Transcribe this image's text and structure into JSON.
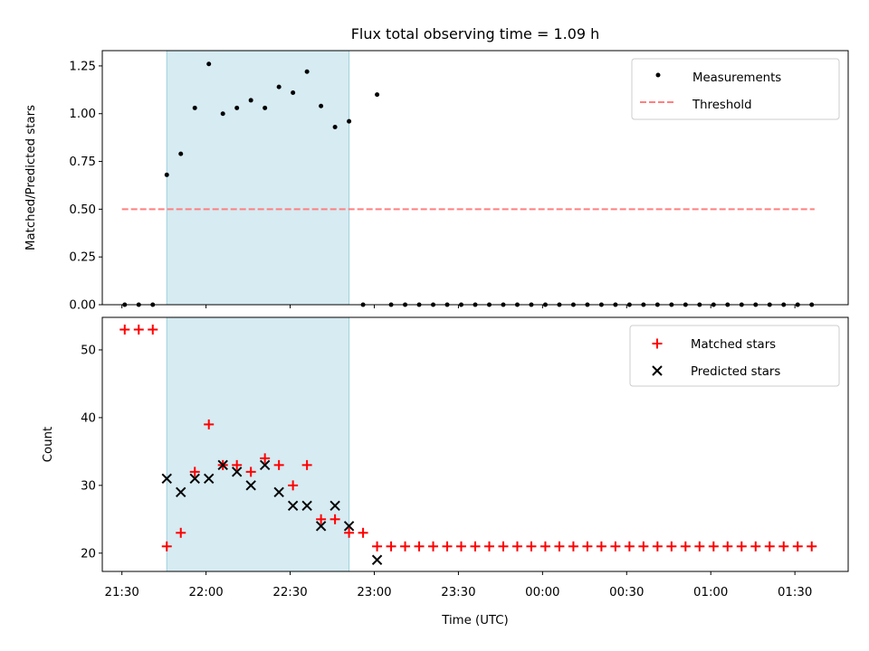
{
  "chart_data": [
    {
      "type": "scatter",
      "title": "Flux total observing time = 1.09 h",
      "ylabel": "Matched/Predicted stars",
      "ylim": [
        0,
        1.33
      ],
      "yticks": [
        "0.00",
        "0.25",
        "0.50",
        "0.75",
        "1.00",
        "1.25"
      ],
      "ytick_values": [
        0,
        0.25,
        0.5,
        0.75,
        1.0,
        1.25
      ],
      "legend_position": "top-right",
      "threshold": {
        "name": "Threshold",
        "value": 0.5,
        "x_start": "21:30",
        "x_end": "01:37",
        "color": "#ff7f7f"
      },
      "shaded_interval": {
        "x_start": "21:46",
        "x_end": "22:51",
        "color": "#add8e6"
      },
      "series": [
        {
          "name": "Measurements",
          "color": "#000000",
          "marker": "dot",
          "x": [
            "21:31",
            "21:36",
            "21:41",
            "21:46",
            "21:51",
            "21:56",
            "22:01",
            "22:06",
            "22:11",
            "22:16",
            "22:21",
            "22:26",
            "22:31",
            "22:36",
            "22:41",
            "22:46",
            "22:51",
            "22:56",
            "23:01",
            "23:06",
            "23:11",
            "23:16",
            "23:21",
            "23:26",
            "23:31",
            "23:36",
            "23:41",
            "23:46",
            "23:51",
            "23:56",
            "00:01",
            "00:06",
            "00:11",
            "00:16",
            "00:21",
            "00:26",
            "00:31",
            "00:36",
            "00:41",
            "00:46",
            "00:51",
            "00:56",
            "01:01",
            "01:06",
            "01:11",
            "01:16",
            "01:21",
            "01:26",
            "01:31",
            "01:36"
          ],
          "y": [
            0,
            0,
            0,
            0.68,
            0.79,
            1.03,
            1.26,
            1.0,
            1.03,
            1.07,
            1.03,
            1.14,
            1.11,
            1.22,
            1.04,
            0.93,
            0.96,
            0,
            1.1,
            0,
            0,
            0,
            0,
            0,
            0,
            0,
            0,
            0,
            0,
            0,
            0,
            0,
            0,
            0,
            0,
            0,
            0,
            0,
            0,
            0,
            0,
            0,
            0,
            0,
            0,
            0,
            0,
            0,
            0,
            0
          ]
        }
      ]
    },
    {
      "type": "scatter",
      "xlabel": "Time (UTC)",
      "ylabel": "Count",
      "ylim": [
        17.3,
        54.8
      ],
      "yticks": [
        "20",
        "30",
        "40",
        "50"
      ],
      "ytick_values": [
        20,
        30,
        40,
        50
      ],
      "xlim": [
        "21:23",
        "01:49"
      ],
      "xticks": [
        "21:30",
        "22:00",
        "22:30",
        "23:00",
        "23:30",
        "00:00",
        "00:30",
        "01:00",
        "01:30"
      ],
      "legend_position": "top-right",
      "shaded_interval": {
        "x_start": "21:46",
        "x_end": "22:51",
        "color": "#add8e6"
      },
      "series": [
        {
          "name": "Matched stars",
          "color": "#ff0000",
          "marker": "plus",
          "x": [
            "21:31",
            "21:36",
            "21:41",
            "21:46",
            "21:51",
            "21:56",
            "22:01",
            "22:06",
            "22:11",
            "22:16",
            "22:21",
            "22:26",
            "22:31",
            "22:36",
            "22:41",
            "22:46",
            "22:51",
            "22:56",
            "23:01",
            "23:06",
            "23:11",
            "23:16",
            "23:21",
            "23:26",
            "23:31",
            "23:36",
            "23:41",
            "23:46",
            "23:51",
            "23:56",
            "00:01",
            "00:06",
            "00:11",
            "00:16",
            "00:21",
            "00:26",
            "00:31",
            "00:36",
            "00:41",
            "00:46",
            "00:51",
            "00:56",
            "01:01",
            "01:06",
            "01:11",
            "01:16",
            "01:21",
            "01:26",
            "01:31",
            "01:36"
          ],
          "y": [
            53,
            53,
            53,
            21,
            23,
            32,
            39,
            33,
            33,
            32,
            34,
            33,
            30,
            33,
            25,
            25,
            23,
            23,
            21,
            21,
            21,
            21,
            21,
            21,
            21,
            21,
            21,
            21,
            21,
            21,
            21,
            21,
            21,
            21,
            21,
            21,
            21,
            21,
            21,
            21,
            21,
            21,
            21,
            21,
            21,
            21,
            21,
            21,
            21,
            21
          ]
        },
        {
          "name": "Predicted stars",
          "color": "#000000",
          "marker": "x",
          "x": [
            "21:46",
            "21:51",
            "21:56",
            "22:01",
            "22:06",
            "22:11",
            "22:16",
            "22:21",
            "22:26",
            "22:31",
            "22:36",
            "22:41",
            "22:46",
            "22:51",
            "23:01"
          ],
          "y": [
            31,
            29,
            31,
            31,
            33,
            32,
            30,
            33,
            29,
            27,
            27,
            24,
            27,
            24,
            19
          ]
        }
      ]
    }
  ]
}
